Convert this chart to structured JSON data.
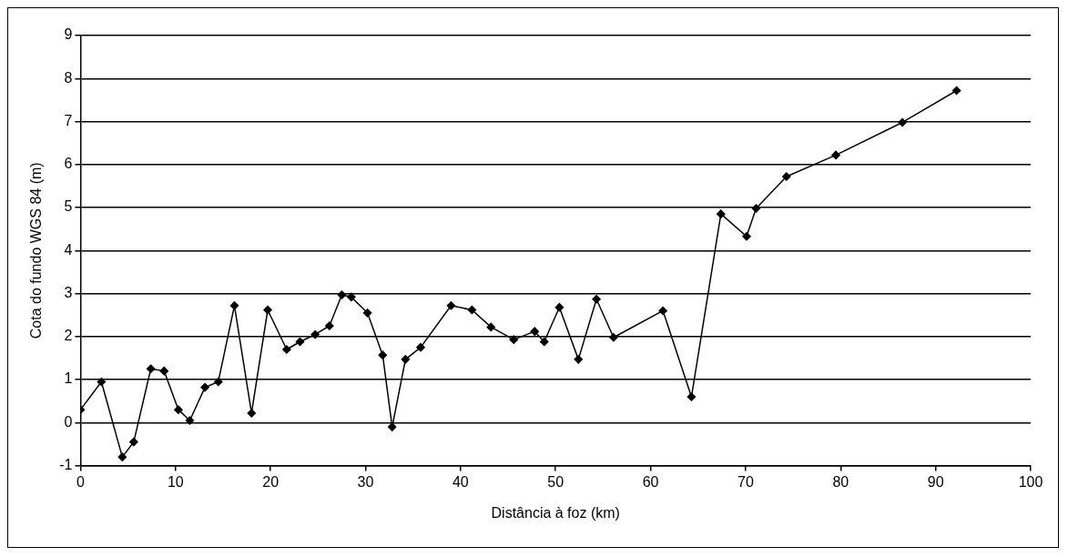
{
  "chart_data": {
    "type": "line",
    "xlabel": "Distância à foz (km)",
    "ylabel": "Cota do fundo WGS 84 (m)",
    "x": [
      0,
      2.2,
      4.4,
      5.6,
      7.4,
      8.8,
      10.3,
      11.5,
      13.1,
      14.5,
      16.2,
      18.0,
      19.7,
      21.7,
      23.1,
      24.7,
      26.2,
      27.5,
      28.5,
      30.2,
      31.8,
      32.8,
      34.2,
      35.8,
      39.0,
      41.2,
      43.2,
      45.6,
      47.8,
      48.8,
      50.4,
      52.4,
      54.3,
      56.1,
      61.3,
      64.3,
      67.4,
      70.1,
      71.1,
      74.3,
      79.5,
      86.5,
      92.2
    ],
    "series": [
      {
        "color": "#000000",
        "values": [
          0.3,
          0.95,
          -0.8,
          -0.45,
          1.25,
          1.2,
          0.3,
          0.05,
          0.82,
          0.95,
          2.72,
          0.22,
          2.62,
          1.7,
          1.88,
          2.05,
          2.25,
          2.97,
          2.92,
          2.55,
          1.57,
          -0.1,
          1.47,
          1.75,
          2.72,
          2.62,
          2.22,
          1.93,
          2.12,
          1.88,
          2.68,
          1.47,
          2.87,
          1.98,
          2.6,
          0.6,
          4.85,
          4.33,
          4.98,
          5.72,
          6.22,
          6.98,
          7.72
        ]
      }
    ],
    "xlim": [
      0,
      100
    ],
    "xticks": [
      0,
      10,
      20,
      30,
      40,
      50,
      60,
      70,
      80,
      90,
      100
    ],
    "ylim": [
      -1,
      9
    ],
    "yticks": [
      -1,
      0,
      1,
      2,
      3,
      4,
      5,
      6,
      7,
      8,
      9
    ],
    "grid": "y",
    "legend": false,
    "marker": "diamond",
    "line_style": "solid"
  }
}
